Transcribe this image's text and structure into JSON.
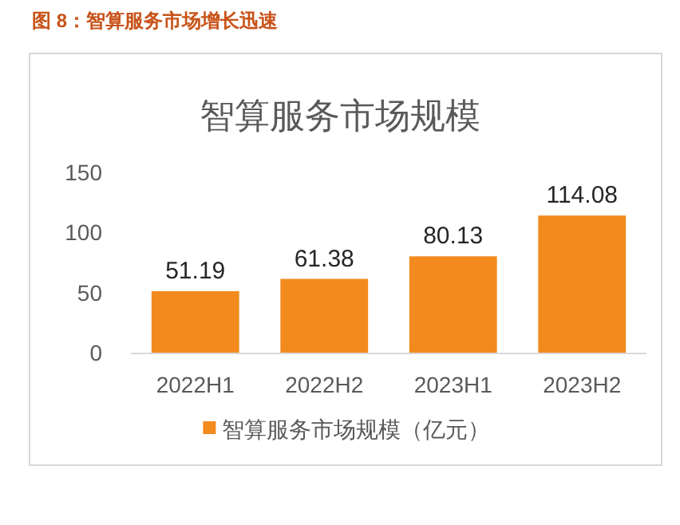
{
  "chart_data": {
    "type": "bar",
    "title": "图 8：智算服务市场增长迅速",
    "subtitle": "智算服务市场规模",
    "categories": [
      "2022H1",
      "2022H2",
      "2023H1",
      "2023H2"
    ],
    "series": [
      {
        "name": "智算服务市场规模（亿元）",
        "color": "#f28a1e",
        "values": [
          51.19,
          61.38,
          80.13,
          114.08
        ]
      }
    ],
    "ylim": [
      0,
      150
    ],
    "yticks": [
      0,
      50,
      100,
      150
    ],
    "data_labels": true,
    "legend": "bottom",
    "grid": false
  }
}
